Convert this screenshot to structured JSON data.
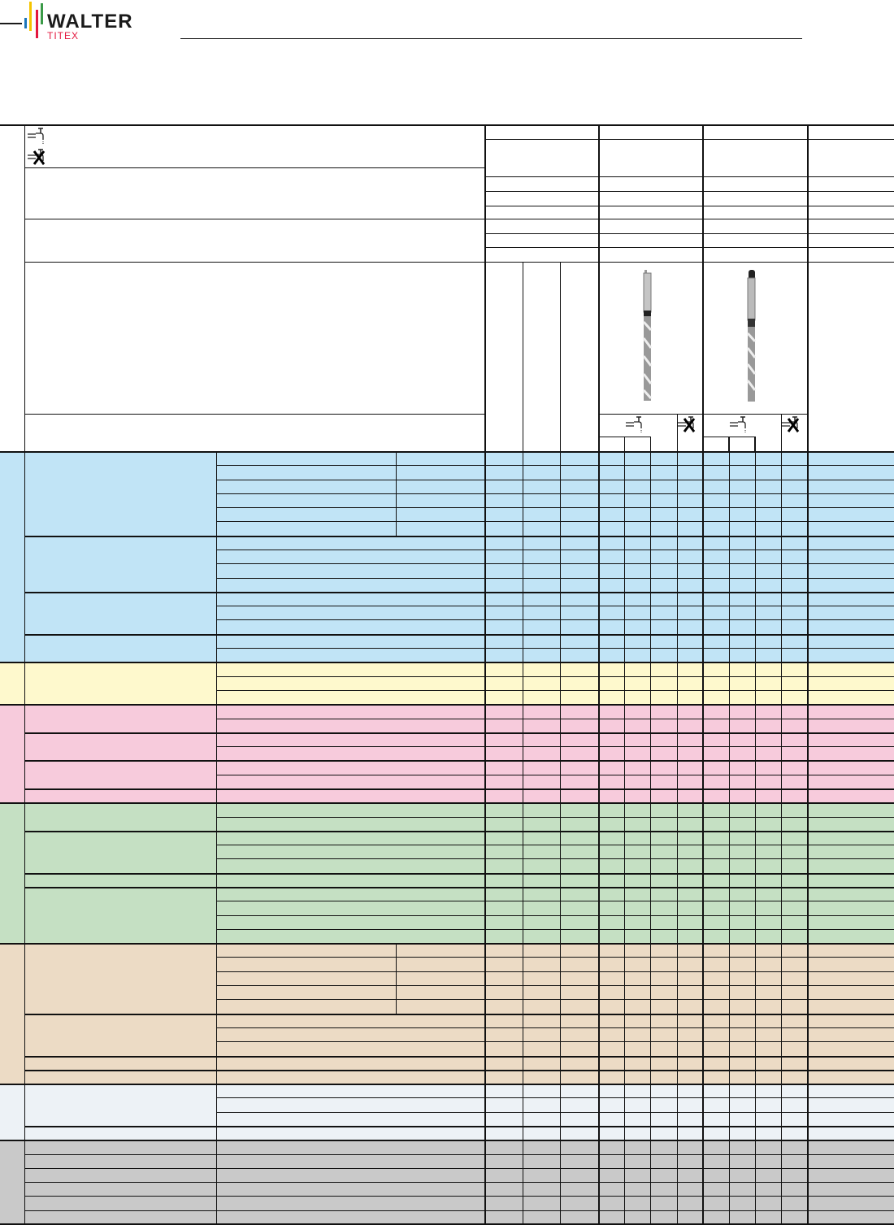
{
  "logo": {
    "brand": "WALTER",
    "sub": "TITEX",
    "colors": {
      "blue": "#1b75bb",
      "yellow": "#f5c400",
      "red": "#e3173e",
      "green": "#3a9a47",
      "text": "#1a1a1a"
    }
  },
  "legend": {
    "icons": [
      "coolant-icon",
      "no-coolant-icon"
    ]
  },
  "products": [
    {
      "icon": "drill-cylindrical-shank"
    },
    {
      "icon": "drill-taper-shank"
    }
  ],
  "material_groups": [
    {
      "color": "#c1e4f6"
    },
    {
      "color": "#fef9cd"
    },
    {
      "color": "#f7cbdc"
    },
    {
      "color": "#c5e0c3"
    },
    {
      "color": "#ecdbc5"
    },
    {
      "color": "#edf2f6"
    },
    {
      "color": "#c9c9c9"
    }
  ]
}
